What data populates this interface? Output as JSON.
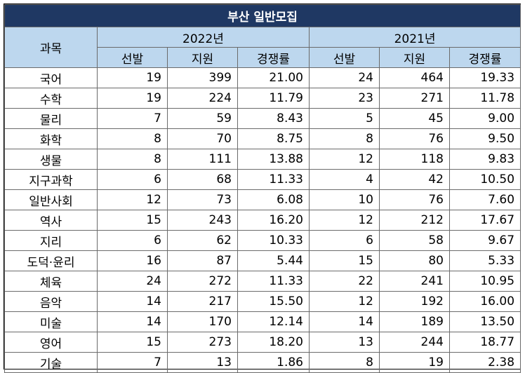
{
  "title": "부산 일반모집",
  "header": {
    "subject_label": "과목",
    "year_2022": "2022년",
    "year_2021": "2021년",
    "cols": [
      "선발",
      "지원",
      "경쟁률",
      "선발",
      "지원",
      "경쟁률"
    ]
  },
  "rows": [
    {
      "subject": "국어",
      "s22": "19",
      "a22": "399",
      "r22": "21.00",
      "s21": "24",
      "a21": "464",
      "r21": "19.33"
    },
    {
      "subject": "수학",
      "s22": "19",
      "a22": "224",
      "r22": "11.79",
      "s21": "23",
      "a21": "271",
      "r21": "11.78"
    },
    {
      "subject": "물리",
      "s22": "7",
      "a22": "59",
      "r22": "8.43",
      "s21": "5",
      "a21": "45",
      "r21": "9.00"
    },
    {
      "subject": "화학",
      "s22": "8",
      "a22": "70",
      "r22": "8.75",
      "s21": "8",
      "a21": "76",
      "r21": "9.50"
    },
    {
      "subject": "생물",
      "s22": "8",
      "a22": "111",
      "r22": "13.88",
      "s21": "12",
      "a21": "118",
      "r21": "9.83"
    },
    {
      "subject": "지구과학",
      "s22": "6",
      "a22": "68",
      "r22": "11.33",
      "s21": "4",
      "a21": "42",
      "r21": "10.50"
    },
    {
      "subject": "일반사회",
      "s22": "12",
      "a22": "73",
      "r22": "6.08",
      "s21": "10",
      "a21": "76",
      "r21": "7.60"
    },
    {
      "subject": "역사",
      "s22": "15",
      "a22": "243",
      "r22": "16.20",
      "s21": "12",
      "a21": "212",
      "r21": "17.67"
    },
    {
      "subject": "지리",
      "s22": "6",
      "a22": "62",
      "r22": "10.33",
      "s21": "6",
      "a21": "58",
      "r21": "9.67"
    },
    {
      "subject": "도덕·윤리",
      "s22": "16",
      "a22": "87",
      "r22": "5.44",
      "s21": "15",
      "a21": "80",
      "r21": "5.33"
    },
    {
      "subject": "체육",
      "s22": "24",
      "a22": "272",
      "r22": "11.33",
      "s21": "22",
      "a21": "241",
      "r21": "10.95"
    },
    {
      "subject": "음악",
      "s22": "14",
      "a22": "217",
      "r22": "15.50",
      "s21": "12",
      "a21": "192",
      "r21": "16.00"
    },
    {
      "subject": "미술",
      "s22": "14",
      "a22": "170",
      "r22": "12.14",
      "s21": "14",
      "a21": "189",
      "r21": "13.50"
    },
    {
      "subject": "영어",
      "s22": "15",
      "a22": "273",
      "r22": "18.20",
      "s21": "13",
      "a21": "244",
      "r21": "18.77"
    },
    {
      "subject": "기술",
      "s22": "7",
      "a22": "13",
      "r22": "1.86",
      "s21": "8",
      "a21": "19",
      "r21": "2.38"
    }
  ],
  "colors": {
    "title_bg": "#1f3863",
    "header_bg": "#bdd7ee"
  }
}
